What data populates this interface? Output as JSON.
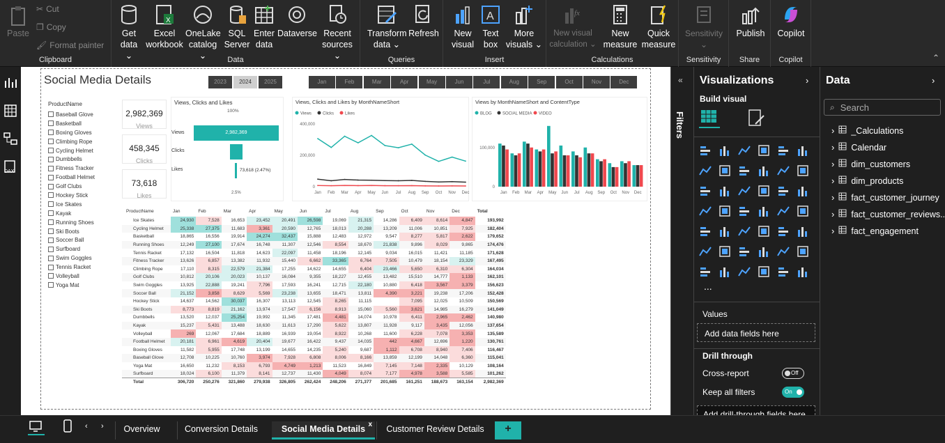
{
  "ribbon": {
    "clipboard": {
      "paste": "Paste",
      "cut": "Cut",
      "copy": "Copy",
      "format_painter": "Format painter",
      "label": "Clipboard"
    },
    "data": {
      "label": "Data",
      "buttons": [
        "Get data ⌄",
        "Excel workbook",
        "OneLake catalog ⌄",
        "SQL Server",
        "Enter data",
        "Dataverse",
        "Recent sources ⌄"
      ]
    },
    "queries": {
      "label": "Queries",
      "buttons": [
        "Transform data ⌄",
        "Refresh"
      ]
    },
    "insert": {
      "label": "Insert",
      "buttons": [
        "New visual",
        "Text box",
        "More visuals ⌄"
      ]
    },
    "calculations": {
      "label": "Calculations",
      "buttons": [
        "New visual calculation ⌄",
        "New measure",
        "Quick measure"
      ]
    },
    "sensitivity": {
      "label": "Sensitivity",
      "button": "Sensitivity ⌄"
    },
    "share": {
      "label": "Share",
      "button": "Publish"
    },
    "copilot": {
      "label": "Copilot",
      "button": "Copilot"
    }
  },
  "report": {
    "title": "Social Media Details",
    "years": [
      "2023",
      "2024",
      "2025"
    ],
    "selected_year": "2024",
    "months": [
      "Jan",
      "Feb",
      "Mar",
      "Apr",
      "May",
      "Jun",
      "Jul",
      "Aug",
      "Sep",
      "Oct",
      "Nov",
      "Dec"
    ],
    "slicer_title": "ProductName",
    "products": [
      "Baseball Glove",
      "Basketball",
      "Boxing Gloves",
      "Climbing Rope",
      "Cycling Helmet",
      "Dumbbells",
      "Fitness Tracker",
      "Football Helmet",
      "Golf Clubs",
      "Hockey Stick",
      "Ice Skates",
      "Kayak",
      "Running Shoes",
      "Ski Boots",
      "Soccer Ball",
      "Surfboard",
      "Swim Goggles",
      "Tennis Racket",
      "Volleyball",
      "Yoga Mat"
    ],
    "cards": [
      {
        "value": "2,982,369",
        "label": "Views"
      },
      {
        "value": "458,345",
        "label": "Clicks"
      },
      {
        "value": "73,618",
        "label": "Likes"
      }
    ],
    "funnel": {
      "title": "Views, Clicks and Likes",
      "top_pct": "100%",
      "views_label": "Views",
      "views_value": "2,982,369",
      "clicks_label": "Clicks",
      "likes_label": "Likes",
      "likes_annot": "73,618 (2.47%)",
      "bottom_pct": "2.5%"
    },
    "matrix": {
      "header": [
        "ProductName",
        "Jan",
        "Feb",
        "Mar",
        "Apr",
        "May",
        "Jun",
        "Jul",
        "Aug",
        "Sep",
        "Oct",
        "Nov",
        "Dec",
        "Total"
      ],
      "rows": [
        [
          "Ice Skates",
          "24,930",
          "7,528",
          "16,653",
          "23,452",
          "20,491",
          "26,598",
          "19,069",
          "21,315",
          "14,286",
          "6,409",
          "8,614",
          "4,847",
          "193,992"
        ],
        [
          "Cycling Helmet",
          "25,338",
          "27,375",
          "11,683",
          "3,361",
          "20,590",
          "12,765",
          "18,013",
          "20,288",
          "13,209",
          "11,006",
          "10,851",
          "7,925",
          "182,404"
        ],
        [
          "Basketball",
          "18,865",
          "16,556",
          "19,914",
          "24,274",
          "32,437",
          "15,888",
          "12,483",
          "12,972",
          "9,547",
          "8,277",
          "5,817",
          "2,622",
          "179,652"
        ],
        [
          "Running Shoes",
          "12,249",
          "27,100",
          "17,674",
          "16,748",
          "11,307",
          "12,546",
          "8,554",
          "18,670",
          "21,838",
          "9,896",
          "8,029",
          "9,865",
          "174,476"
        ],
        [
          "Tennis Racket",
          "17,132",
          "16,504",
          "11,818",
          "14,623",
          "22,097",
          "11,458",
          "18,196",
          "12,145",
          "9,034",
          "16,015",
          "11,421",
          "11,185",
          "171,628"
        ],
        [
          "Fitness Tracker",
          "13,626",
          "6,857",
          "13,382",
          "11,932",
          "15,440",
          "6,662",
          "33,365",
          "6,764",
          "7,505",
          "10,479",
          "18,154",
          "23,329",
          "167,495"
        ],
        [
          "Climbing Rope",
          "17,110",
          "8,315",
          "22,579",
          "21,384",
          "17,255",
          "14,622",
          "14,655",
          "6,404",
          "23,466",
          "5,650",
          "6,310",
          "6,304",
          "164,034"
        ],
        [
          "Golf Clubs",
          "10,812",
          "20,106",
          "20,023",
          "10,137",
          "16,084",
          "9,355",
          "18,227",
          "12,455",
          "13,482",
          "15,510",
          "14,777",
          "1,133",
          "162,101"
        ],
        [
          "Swim Goggles",
          "13,925",
          "22,888",
          "19,241",
          "7,796",
          "17,593",
          "16,241",
          "12,715",
          "22,180",
          "10,880",
          "6,418",
          "3,567",
          "3,379",
          "156,623"
        ],
        [
          "Soccer Ball",
          "21,152",
          "3,858",
          "8,629",
          "5,569",
          "23,238",
          "13,655",
          "18,471",
          "13,811",
          "4,390",
          "3,221",
          "19,238",
          "17,206",
          "152,428"
        ],
        [
          "Hockey Stick",
          "14,637",
          "14,562",
          "30,037",
          "16,307",
          "13,113",
          "12,545",
          "8,265",
          "11,115",
          "",
          "7,095",
          "12,025",
          "10,509",
          "150,569"
        ],
        [
          "Ski Boots",
          "8,773",
          "8,819",
          "21,162",
          "13,974",
          "17,547",
          "6,156",
          "8,913",
          "15,060",
          "5,560",
          "3,621",
          "14,985",
          "16,279",
          "141,049"
        ],
        [
          "Dumbbells",
          "13,520",
          "12,037",
          "25,254",
          "19,992",
          "11,345",
          "17,481",
          "4,481",
          "14,074",
          "10,978",
          "6,411",
          "2,965",
          "2,462",
          "140,980"
        ],
        [
          "Kayak",
          "15,237",
          "5,431",
          "13,488",
          "18,630",
          "11,613",
          "17,290",
          "5,622",
          "13,807",
          "11,928",
          "9,117",
          "3,435",
          "12,056",
          "137,654"
        ],
        [
          "Volleyball",
          "269",
          "12,067",
          "17,684",
          "18,889",
          "16,939",
          "19,054",
          "8,922",
          "10,268",
          "11,600",
          "6,228",
          "7,078",
          "3,353",
          "135,589"
        ],
        [
          "Football Helmet",
          "20,181",
          "6,961",
          "4,619",
          "20,404",
          "19,677",
          "16,422",
          "9,437",
          "14,035",
          "442",
          "4,667",
          "12,696",
          "1,220",
          "130,761"
        ],
        [
          "Boxing Gloves",
          "11,582",
          "5,955",
          "17,748",
          "13,199",
          "14,655",
          "14,235",
          "5,240",
          "9,687",
          "1,112",
          "6,708",
          "8,940",
          "7,406",
          "116,467"
        ],
        [
          "Baseball Glove",
          "12,708",
          "10,225",
          "10,760",
          "3,974",
          "7,928",
          "6,808",
          "8,006",
          "8,166",
          "13,859",
          "12,199",
          "14,048",
          "6,360",
          "115,041"
        ],
        [
          "Yoga Mat",
          "16,650",
          "11,232",
          "8,153",
          "6,793",
          "4,749",
          "1,213",
          "11,523",
          "16,849",
          "7,145",
          "7,148",
          "2,335",
          "10,129",
          "108,164"
        ],
        [
          "Surfboard",
          "18,024",
          "6,100",
          "11,379",
          "8,141",
          "12,737",
          "11,430",
          "4,049",
          "8,074",
          "7,177",
          "4,978",
          "3,588",
          "5,585",
          "101,262"
        ]
      ],
      "total": [
        "Total",
        "306,720",
        "250,276",
        "321,860",
        "279,938",
        "326,805",
        "262,424",
        "248,206",
        "271,377",
        "201,685",
        "161,251",
        "188,673",
        "163,154",
        "2,982,369"
      ]
    }
  },
  "chart_data": [
    {
      "type": "line",
      "title": "Views, Clicks and Likes by MonthNameShort",
      "categories": [
        "Jan",
        "Feb",
        "Mar",
        "Apr",
        "May",
        "Jun",
        "Jul",
        "Aug",
        "Sep",
        "Oct",
        "Nov",
        "Dec"
      ],
      "series": [
        {
          "name": "Views",
          "color": "#20b2aa",
          "values": [
            306720,
            250276,
            321860,
            279938,
            326805,
            262424,
            248206,
            271377,
            201685,
            161251,
            188673,
            163154
          ]
        },
        {
          "name": "Clicks",
          "color": "#333333",
          "values": [
            48000,
            38000,
            46000,
            42000,
            41000,
            39000,
            38000,
            40000,
            34000,
            30000,
            32000,
            29000
          ]
        },
        {
          "name": "Likes",
          "color": "#f0484e",
          "values": [
            7500,
            6200,
            7800,
            6900,
            7600,
            6300,
            6000,
            6600,
            5200,
            4300,
            4800,
            4400
          ]
        }
      ],
      "yticks": [
        "400,000",
        "200,000",
        "0"
      ],
      "ylim": [
        0,
        400000
      ]
    },
    {
      "type": "bar",
      "title": "Views by MonthNameShort and ContentType",
      "categories": [
        "Jan",
        "Feb",
        "Mar",
        "Apr",
        "May",
        "Jun",
        "Jul",
        "Aug",
        "Sep",
        "Oct",
        "Nov",
        "Dec"
      ],
      "series": [
        {
          "name": "BLOG",
          "color": "#20b2aa",
          "values": [
            110000,
            85000,
            115000,
            95000,
            155000,
            105000,
            90000,
            100000,
            70000,
            60000,
            65000,
            55000
          ]
        },
        {
          "name": "SOCIAL MEDIA",
          "color": "#333333",
          "values": [
            105000,
            80000,
            110000,
            90000,
            85000,
            80000,
            80000,
            85000,
            65000,
            50000,
            60000,
            55000
          ]
        },
        {
          "name": "VIDEO",
          "color": "#f0484e",
          "values": [
            95000,
            85000,
            100000,
            95000,
            90000,
            80000,
            75000,
            85000,
            70000,
            50000,
            65000,
            55000
          ]
        }
      ],
      "yticks": [
        "100,000",
        "0"
      ],
      "ylim": [
        0,
        160000
      ]
    }
  ],
  "filters": {
    "label": "Filters"
  },
  "visualizations": {
    "title": "Visualizations",
    "build_visual": "Build visual",
    "more": "...",
    "values_label": "Values",
    "add_data_fields": "Add data fields here",
    "drill_through": "Drill through",
    "cross_report": "Cross-report",
    "cross_report_state": "Off",
    "keep_all_filters": "Keep all filters",
    "keep_all_filters_state": "On",
    "add_drill_fields": "Add drill-through fields here"
  },
  "data_pane": {
    "title": "Data",
    "search_placeholder": "Search",
    "tables": [
      "_Calculations",
      "Calendar",
      "dim_customers",
      "dim_products",
      "fact_customer_journey",
      "fact_customer_reviews...",
      "fact_engagement"
    ]
  },
  "tabs": {
    "pages": [
      "Overview",
      "Conversion Details",
      "Social Media Details",
      "Customer Review Details"
    ],
    "active": "Social Media Details",
    "close": "x",
    "add": "+"
  },
  "colors": {
    "accent": "#20b2aa",
    "teal_cell": "#9fe0dc",
    "red_cell": "#f6b1b1"
  }
}
